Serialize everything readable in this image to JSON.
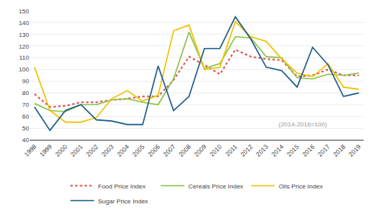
{
  "chart_data": {
    "type": "line",
    "x": [
      1998,
      1999,
      2000,
      2001,
      2002,
      2003,
      2004,
      2005,
      2006,
      2007,
      2008,
      2009,
      2010,
      2011,
      2012,
      2013,
      2014,
      2015,
      2016,
      2017,
      2018,
      2019
    ],
    "series": [
      {
        "name": "Food Price Index",
        "color": "#e05050",
        "line_style": "dotted",
        "values": [
          79,
          68,
          69,
          72,
          72,
          74,
          75,
          77,
          77,
          91,
          111,
          104,
          96,
          117,
          111,
          109,
          108,
          94,
          95,
          100,
          95,
          95
        ]
      },
      {
        "name": "Cereals Price Index",
        "color": "#8bc34a",
        "line_style": "solid",
        "values": [
          71,
          65,
          64,
          70,
          70,
          74,
          75,
          72,
          70,
          92,
          132,
          101,
          105,
          128,
          127,
          111,
          110,
          93,
          92,
          96,
          95,
          97
        ]
      },
      {
        "name": "Oils Price Index",
        "color": "#f0c000",
        "line_style": "solid",
        "values": [
          102,
          65,
          55,
          55,
          59,
          75,
          82,
          73,
          78,
          133,
          138,
          100,
          102,
          141,
          128,
          124,
          109,
          97,
          94,
          105,
          85,
          83
        ]
      },
      {
        "name": "Sugar Price Index",
        "color": "#1f5f8b",
        "line_style": "solid",
        "values": [
          68,
          48,
          65,
          70,
          57,
          56,
          53,
          53,
          103,
          65,
          77,
          118,
          118,
          145,
          126,
          102,
          99,
          85,
          119,
          104,
          77,
          80
        ]
      }
    ],
    "annotation": "(2014-2016=100)",
    "xlim": [
      1997.7,
      2019.3
    ],
    "xticks": [
      1998,
      1999,
      2000,
      2001,
      2002,
      2003,
      2004,
      2005,
      2006,
      2007,
      2008,
      2009,
      2010,
      2011,
      2012,
      2013,
      2014,
      2015,
      2016,
      2017,
      2018,
      2019
    ],
    "ylim": [
      40,
      150
    ],
    "yticks": [
      40,
      50,
      60,
      70,
      80,
      90,
      100,
      110,
      120,
      130,
      140,
      150
    ],
    "grid": true,
    "legend": "bottom"
  }
}
